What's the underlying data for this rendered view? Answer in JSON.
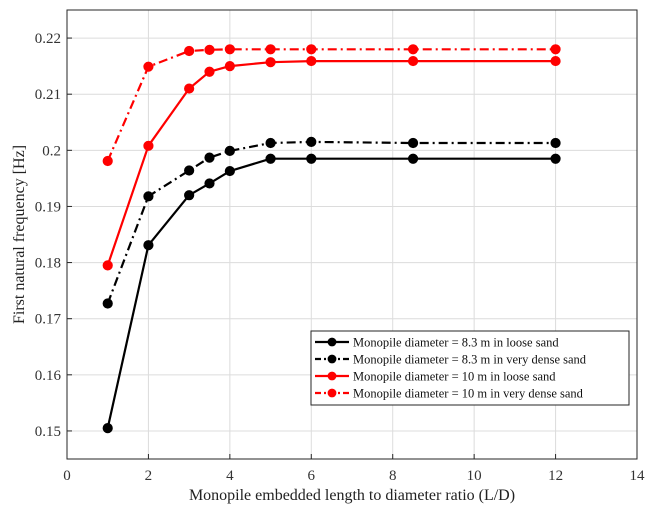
{
  "chart_data": {
    "type": "line",
    "title": "",
    "xlabel": "Monopile embedded length to diameter ratio (L/D)",
    "ylabel": "First natural frequency  [Hz]",
    "xlim": [
      0,
      14
    ],
    "ylim": [
      0.145,
      0.225
    ],
    "xticks": [
      0,
      2,
      4,
      6,
      8,
      10,
      12,
      14
    ],
    "yticks": [
      0.15,
      0.16,
      0.17,
      0.18,
      0.19,
      0.2,
      0.21,
      0.22
    ],
    "grid": true,
    "legend_position": "bottom-right",
    "series": [
      {
        "name": "Monopile diameter = 8.3 m in loose sand",
        "color": "#000000",
        "style": "solid",
        "x": [
          1,
          2,
          3,
          3.5,
          4,
          5,
          6,
          8.5,
          12
        ],
        "y": [
          0.1505,
          0.1831,
          0.192,
          0.1941,
          0.1963,
          0.1985,
          0.1985,
          0.1985,
          0.1985
        ]
      },
      {
        "name": "Monopile diameter = 8.3 m in very dense sand",
        "color": "#000000",
        "style": "dashdot",
        "x": [
          1,
          2,
          3,
          3.5,
          4,
          5,
          6,
          8.5,
          12
        ],
        "y": [
          0.1727,
          0.1918,
          0.1964,
          0.1987,
          0.1999,
          0.2013,
          0.2015,
          0.2013,
          0.2013
        ]
      },
      {
        "name": "Monopile diameter = 10 m in loose sand",
        "color": "#ff0000",
        "style": "solid",
        "x": [
          1,
          2,
          3,
          3.5,
          4,
          5,
          6,
          8.5,
          12
        ],
        "y": [
          0.1795,
          0.2008,
          0.211,
          0.214,
          0.215,
          0.2157,
          0.2159,
          0.2159,
          0.2159
        ]
      },
      {
        "name": "Monopile diameter = 10 m in very dense sand",
        "color": "#ff0000",
        "style": "dashdot",
        "x": [
          1,
          2,
          3,
          3.5,
          4,
          5,
          6,
          8.5,
          12
        ],
        "y": [
          0.1981,
          0.2149,
          0.2177,
          0.2179,
          0.218,
          0.218,
          0.218,
          0.218,
          0.218
        ]
      }
    ]
  }
}
